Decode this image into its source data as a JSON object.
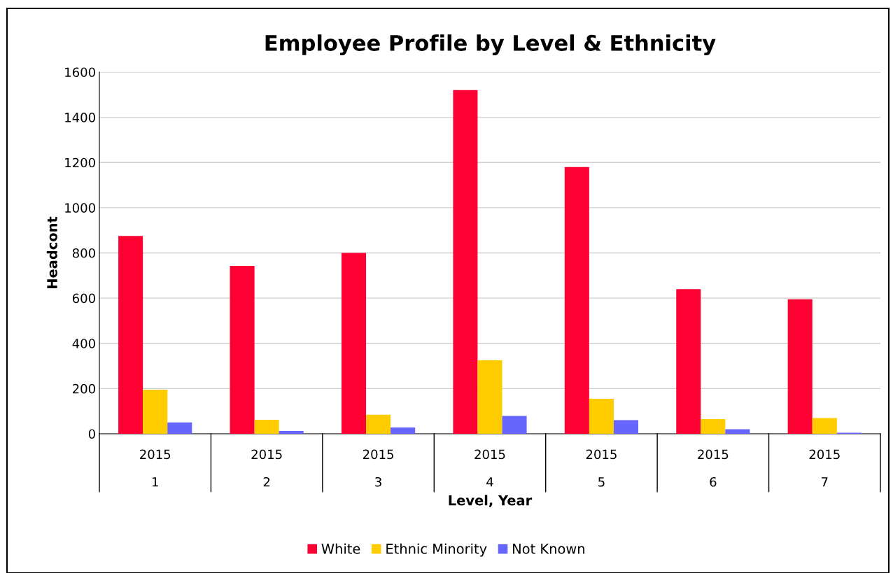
{
  "chart_data": {
    "type": "bar",
    "title": "Employee Profile by Level & Ethnicity",
    "xlabel": "Level, Year",
    "ylabel": "Headcont",
    "categories": [
      "2015\n1",
      "2015\n2",
      "2015\n3",
      "2015\n4",
      "2015\n5",
      "2015\n6",
      "2015\n7"
    ],
    "series": [
      {
        "name": "White",
        "color": "#ff0033",
        "values": [
          875,
          743,
          800,
          1520,
          1180,
          640,
          595
        ]
      },
      {
        "name": "Ethnic Minority",
        "color": "#ffcc00",
        "values": [
          195,
          62,
          84,
          325,
          155,
          65,
          70
        ]
      },
      {
        "name": "Not Known",
        "color": "#6666ff",
        "values": [
          50,
          12,
          28,
          79,
          60,
          20,
          5
        ]
      }
    ],
    "ylim": [
      0,
      1600
    ],
    "yticks": [
      0,
      200,
      400,
      600,
      800,
      1000,
      1200,
      1400,
      1600
    ],
    "grid": "y",
    "legend": "bottom"
  }
}
